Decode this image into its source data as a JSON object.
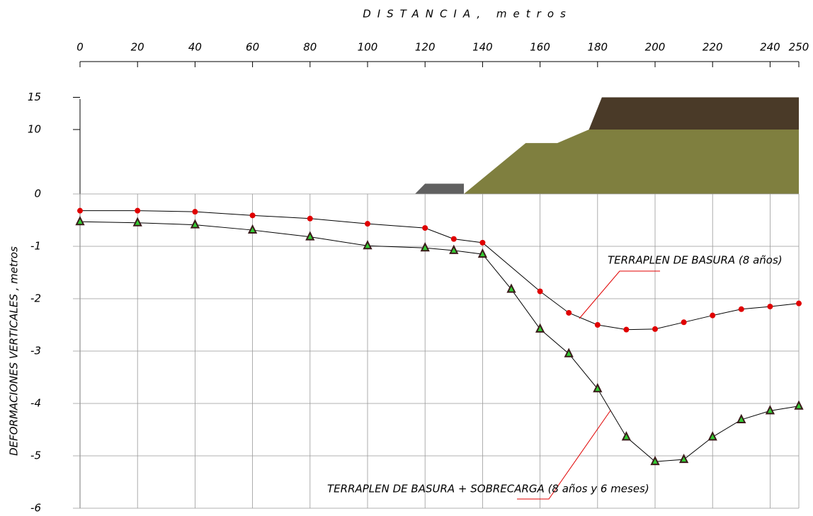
{
  "chart_data": {
    "type": "line",
    "title": "DISTANCIA, metros",
    "y_label": "DEFORMACIONES VERTICALES , metros",
    "xlim": [
      0,
      250
    ],
    "xticks": [
      0,
      20,
      40,
      60,
      80,
      100,
      120,
      140,
      160,
      180,
      200,
      220,
      240,
      250
    ],
    "ylim": [
      -6,
      0
    ],
    "yticks": [
      0,
      -1,
      -2,
      -3,
      -4,
      -5,
      -6
    ],
    "profile_ylim": [
      0,
      15
    ],
    "profile_yticks": [
      10,
      15
    ],
    "grid": true,
    "profile": [
      {
        "color": "#606060",
        "x": [
          116.5,
          120,
          133.5,
          133.5
        ],
        "y": [
          0,
          1.6,
          1.6,
          0
        ]
      },
      {
        "color": "#7f7f3f",
        "x": [
          133.5,
          155,
          166,
          177,
          250,
          250
        ],
        "y": [
          0,
          7.9,
          7.9,
          10,
          10,
          0
        ]
      },
      {
        "color": "#4a3a28",
        "x": [
          177,
          181.5,
          250,
          250
        ],
        "y": [
          10,
          15,
          15,
          10
        ]
      }
    ],
    "series": [
      {
        "name": "TERRAPLEN DE BASURA (8 años)",
        "color": "#e00000",
        "marker": "circle",
        "x": [
          0,
          20,
          40,
          60,
          80,
          100,
          120,
          130,
          140,
          160,
          170,
          180,
          190,
          200,
          210,
          220,
          230,
          240,
          250
        ],
        "values": [
          -0.32,
          -0.32,
          -0.34,
          -0.41,
          -0.47,
          -0.57,
          -0.65,
          -0.86,
          -0.93,
          -1.86,
          -2.27,
          -2.5,
          -2.59,
          -2.58,
          -2.45,
          -2.32,
          -2.2,
          -2.15,
          -2.09
        ]
      },
      {
        "name": "TERRAPLEN DE BASURA + SOBRECARGA (8 años y 6 meses)",
        "color": "#33cc33",
        "marker": "triangle",
        "x": [
          0,
          20,
          40,
          60,
          80,
          100,
          120,
          130,
          140,
          150,
          160,
          170,
          180,
          190,
          200,
          210,
          220,
          230,
          240,
          250
        ],
        "values": [
          -0.53,
          -0.55,
          -0.59,
          -0.69,
          -0.82,
          -0.99,
          -1.03,
          -1.08,
          -1.15,
          -1.82,
          -2.58,
          -3.05,
          -3.72,
          -4.64,
          -5.11,
          -5.07,
          -4.64,
          -4.31,
          -4.14,
          -4.05
        ]
      }
    ]
  }
}
